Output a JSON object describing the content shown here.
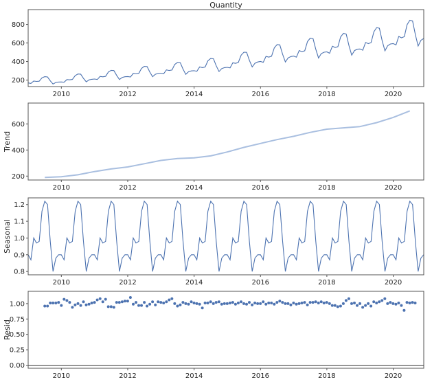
{
  "chart_data": [
    {
      "type": "line",
      "id": "observed",
      "title": "Quantity",
      "ylabel": "",
      "xlim": [
        2009.0,
        2020.92
      ],
      "ylim": [
        130,
        960
      ],
      "yticks": [
        200,
        400,
        600,
        800
      ],
      "xticks": [
        2010,
        2012,
        2014,
        2016,
        2018,
        2020
      ],
      "color": "#4c72b0",
      "seasonal": [
        0.9,
        0.87,
        1.0,
        0.97,
        0.98,
        1.16,
        1.22,
        1.2,
        0.98,
        0.8,
        0.88,
        0.9
      ],
      "trend_anchors": [
        [
          2009.0,
          188
        ],
        [
          2010.0,
          200
        ],
        [
          2011.0,
          235
        ],
        [
          2012.0,
          265
        ],
        [
          2013.0,
          305
        ],
        [
          2014.0,
          335
        ],
        [
          2015.0,
          375
        ],
        [
          2016.0,
          445
        ],
        [
          2017.0,
          510
        ],
        [
          2018.0,
          560
        ],
        [
          2019.0,
          595
        ],
        [
          2020.0,
          660
        ],
        [
          2020.92,
          720
        ]
      ]
    },
    {
      "type": "line",
      "id": "trend",
      "title": "",
      "ylabel": "Trend",
      "xlim": [
        2009.0,
        2020.92
      ],
      "ylim": [
        170,
        760
      ],
      "yticks": [
        200,
        400,
        600
      ],
      "xticks": [
        2010,
        2012,
        2014,
        2016,
        2018,
        2020
      ],
      "color": "#a9bfe0",
      "x": [
        2009.5,
        2010.0,
        2010.5,
        2011.0,
        2011.5,
        2012.0,
        2012.5,
        2013.0,
        2013.5,
        2014.0,
        2014.5,
        2015.0,
        2015.5,
        2016.0,
        2016.5,
        2017.0,
        2017.5,
        2018.0,
        2018.5,
        2019.0,
        2019.5,
        2020.0,
        2020.5
      ],
      "y": [
        190,
        195,
        210,
        235,
        255,
        270,
        295,
        320,
        335,
        340,
        355,
        385,
        420,
        450,
        480,
        505,
        535,
        560,
        570,
        580,
        610,
        650,
        700
      ]
    },
    {
      "type": "line",
      "id": "seasonal",
      "title": "",
      "ylabel": "Seasonal",
      "xlim": [
        2009.0,
        2020.92
      ],
      "ylim": [
        0.78,
        1.24
      ],
      "yticks": [
        0.8,
        0.9,
        1.0,
        1.1,
        1.2
      ],
      "ytick_labels": [
        "0.8",
        "0.9",
        "1.0",
        "1.1",
        "1.2"
      ],
      "xticks": [
        2010,
        2012,
        2014,
        2016,
        2018,
        2020
      ],
      "color": "#4c72b0",
      "monthly_pattern": [
        0.9,
        0.87,
        1.0,
        0.97,
        0.98,
        1.16,
        1.22,
        1.2,
        0.98,
        0.8,
        0.88,
        0.9
      ]
    },
    {
      "type": "scatter",
      "id": "resid",
      "title": "",
      "ylabel": "Resid",
      "xlim": [
        2009.0,
        2020.92
      ],
      "ylim": [
        -0.05,
        1.2
      ],
      "yticks": [
        0.0,
        0.25,
        0.5,
        0.75,
        1.0
      ],
      "ytick_labels": [
        "0.00",
        "0.25",
        "0.50",
        "0.75",
        "1.00"
      ],
      "xticks": [
        2010,
        2012,
        2014,
        2016,
        2018,
        2020
      ],
      "color": "#4c72b0",
      "baseline": 0,
      "x_start": 2009.5,
      "x_step": 0.0833,
      "y": [
        0.96,
        0.96,
        1.01,
        1.01,
        1.01,
        1.02,
        0.97,
        1.07,
        1.05,
        1.02,
        0.94,
        0.98,
        1.0,
        0.97,
        1.03,
        0.98,
        0.99,
        1.01,
        1.02,
        1.06,
        1.08,
        1.03,
        1.07,
        0.95,
        0.95,
        0.94,
        1.02,
        1.02,
        1.03,
        1.04,
        1.04,
        1.1,
        0.99,
        1.02,
        0.97,
        0.97,
        1.02,
        0.96,
        0.99,
        1.03,
        0.98,
        1.03,
        1.02,
        1.01,
        1.03,
        1.06,
        1.08,
        1.0,
        0.96,
        0.98,
        1.02,
        1.0,
        0.99,
        1.03,
        1.01,
        1.0,
        0.99,
        0.93,
        1.01,
        1.01,
        1.03,
        1.0,
        1.02,
        1.03,
        0.99,
        1.0,
        1.0,
        1.01,
        1.02,
        0.99,
        1.01,
        1.03,
        1.0,
        0.99,
        1.02,
        0.98,
        1.01,
        1.0,
        1.0,
        1.03,
        0.99,
        1.01,
        1.01,
        0.99,
        1.02,
        1.04,
        1.02,
        1.0,
        1.0,
        0.98,
        1.01,
        0.99,
        1.0,
        1.01,
        1.02,
        0.98,
        1.02,
        1.02,
        1.03,
        1.01,
        1.03,
        1.01,
        1.02,
        1.0,
        0.97,
        0.97,
        0.95,
        0.96,
        1.0,
        1.05,
        1.08,
        1.0,
        1.01,
        0.97,
        1.0,
        0.94,
        0.97,
        1.0,
        0.96,
        1.03,
        1.01,
        1.03,
        1.05,
        1.08,
        1.0,
        1.02,
        1.0,
        0.99,
        1.01,
        0.97,
        0.89,
        1.02,
        1.01,
        1.02,
        1.01
      ]
    }
  ]
}
